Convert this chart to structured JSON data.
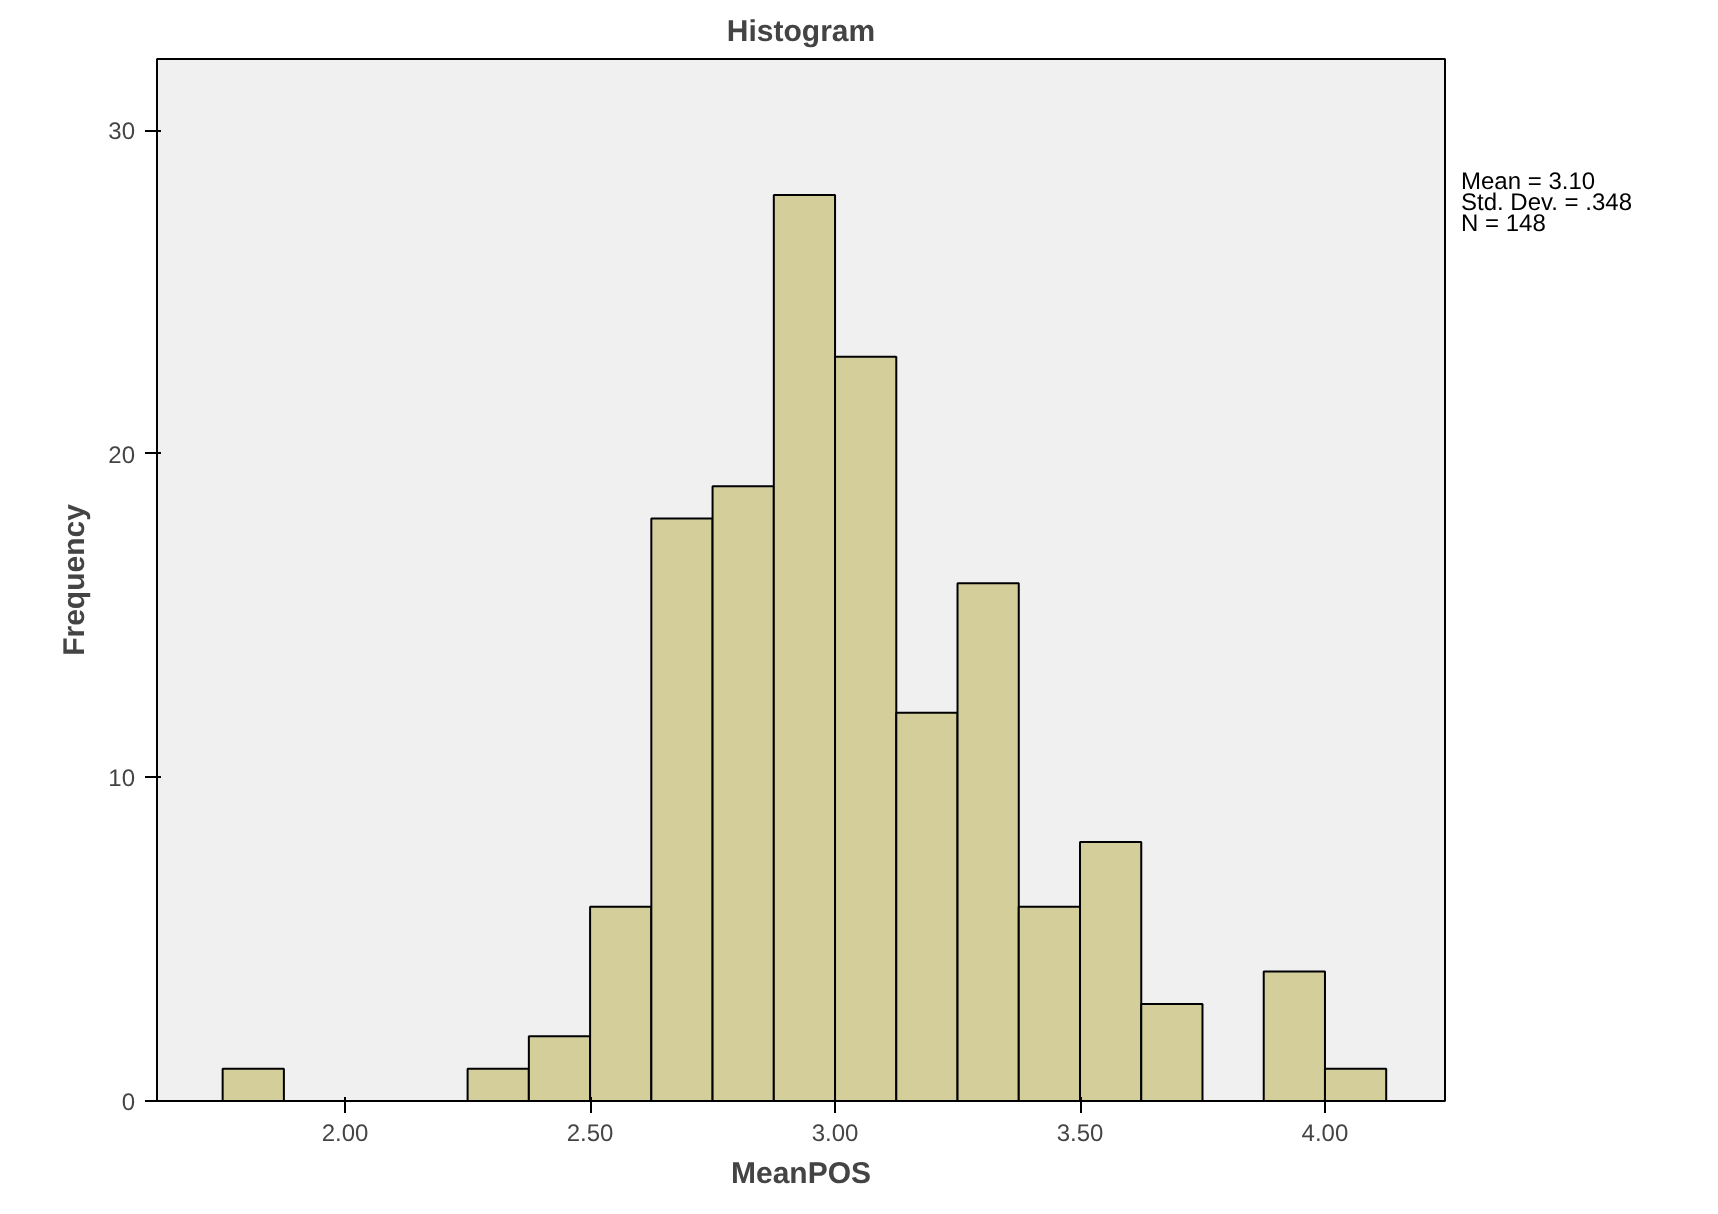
{
  "chart_data": {
    "type": "histogram",
    "title": "Histogram",
    "xlabel": "MeanPOS",
    "ylabel": "Frequency",
    "bins": [
      1.75,
      1.875,
      2.0,
      2.125,
      2.25,
      2.375,
      2.5,
      2.625,
      2.75,
      2.875,
      3.0,
      3.125,
      3.25,
      3.375,
      3.5,
      3.625,
      3.75,
      3.875,
      4.0,
      4.125
    ],
    "values": [
      1,
      0,
      0,
      0,
      1,
      2,
      6,
      18,
      19,
      28,
      23,
      12,
      16,
      6,
      8,
      3,
      0,
      4,
      1
    ],
    "color": "#d3ce9a",
    "xlim": [
      1.616,
      4.245
    ],
    "xticks": [
      {
        "value": 2,
        "label": "2.00"
      },
      {
        "value": 2.5,
        "label": "2.50"
      },
      {
        "value": 3,
        "label": "3.00"
      },
      {
        "value": 3.5,
        "label": "3.50"
      },
      {
        "value": 4,
        "label": "4.00"
      }
    ],
    "ylim": [
      0,
      32.2
    ],
    "yticks": [
      0,
      10,
      20,
      30
    ],
    "annotations": [
      "Mean = 3.10",
      "Std. Dev. = .348",
      "N = 148"
    ]
  }
}
